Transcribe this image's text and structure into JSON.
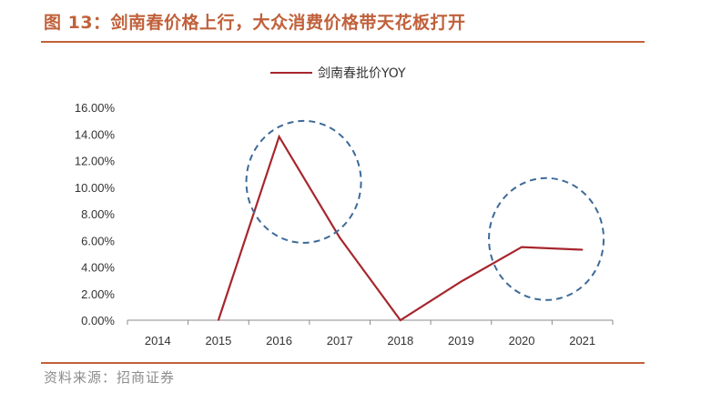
{
  "header": {
    "title": "图 13：剑南春价格上行，大众消费价格带天花板打开"
  },
  "footer": {
    "source": "资料来源：招商证券"
  },
  "colors": {
    "accent": "#c0613b",
    "line": "#a6262c",
    "annotation_circle": "#3d6a99"
  },
  "chart_data": {
    "type": "line",
    "categories": [
      "2014",
      "2015",
      "2016",
      "2017",
      "2018",
      "2019",
      "2020",
      "2021"
    ],
    "series": [
      {
        "name": "剑南春批价YOY",
        "values": [
          null,
          0.0,
          13.8,
          6.2,
          0.0,
          2.9,
          5.5,
          5.3
        ]
      }
    ],
    "y_ticks": [
      "0.00%",
      "2.00%",
      "4.00%",
      "6.00%",
      "8.00%",
      "10.00%",
      "12.00%",
      "14.00%",
      "16.00%"
    ],
    "ylim": [
      0,
      16
    ],
    "grid": false,
    "legend": "top-center",
    "annotations": [
      {
        "type": "dashed-circle",
        "around": "2016"
      },
      {
        "type": "dashed-circle",
        "around": "2020-2021"
      }
    ]
  }
}
